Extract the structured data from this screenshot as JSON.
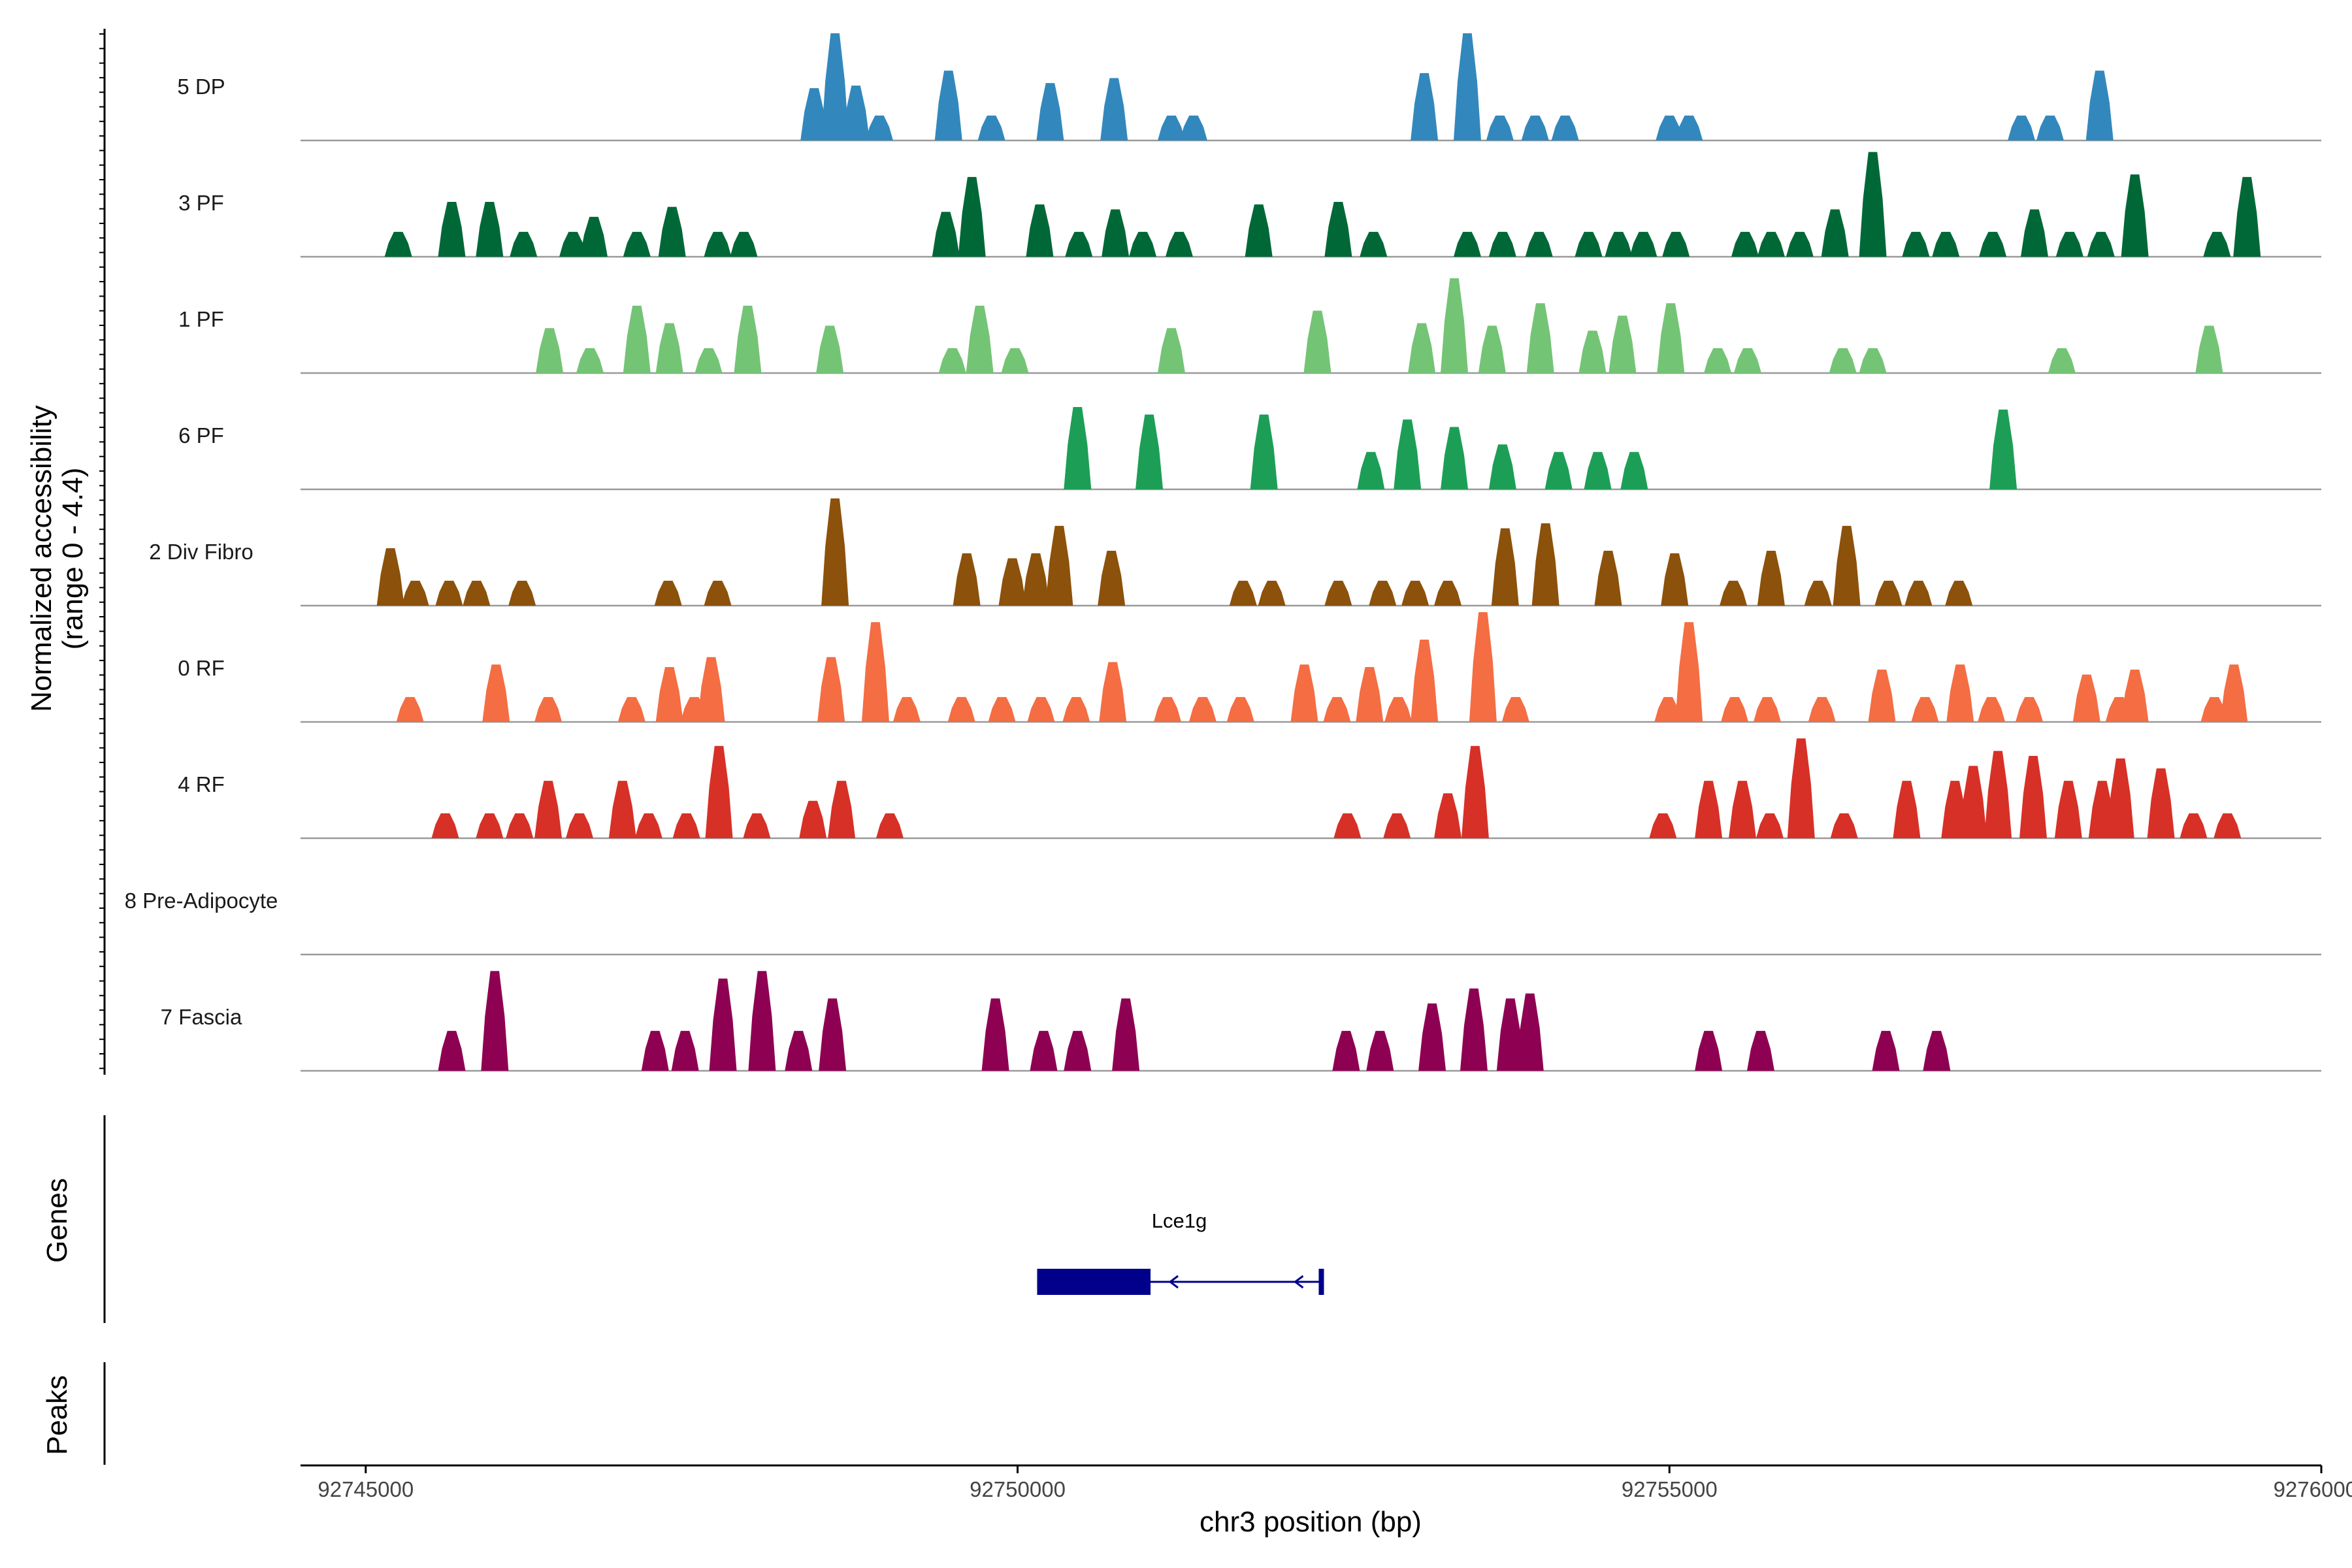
{
  "chart_data": {
    "type": "area",
    "title": "",
    "ylabel": "Normalized accessibility",
    "ylabel_range": "(range 0 - 4.4)",
    "y_range": [
      0,
      4.4
    ],
    "xlabel": "chr3 position (bp)",
    "xlim": [
      92744500,
      92760000
    ],
    "x_ticks": [
      {
        "value": 92745000,
        "label": "92745000"
      },
      {
        "value": 92750000,
        "label": "92750000"
      },
      {
        "value": 92755000,
        "label": "92755000"
      },
      {
        "value": 92760000,
        "label": "92760000"
      }
    ],
    "series": [
      {
        "name": "5 DP",
        "color": "#3288BD",
        "peaks": [
          [
            92748440,
            2.1
          ],
          [
            92748600,
            4.3
          ],
          [
            92748760,
            2.2
          ],
          [
            92748940,
            1.0
          ],
          [
            92749470,
            2.8
          ],
          [
            92749800,
            1.0
          ],
          [
            92750250,
            2.3
          ],
          [
            92750740,
            2.5
          ],
          [
            92751180,
            1.0
          ],
          [
            92751350,
            1.0
          ],
          [
            92753120,
            2.7
          ],
          [
            92753450,
            4.3
          ],
          [
            92753700,
            1.0
          ],
          [
            92753970,
            1.0
          ],
          [
            92754200,
            1.0
          ],
          [
            92755000,
            1.0
          ],
          [
            92755150,
            1.0
          ],
          [
            92757700,
            1.0
          ],
          [
            92757920,
            1.0
          ],
          [
            92758300,
            2.8
          ]
        ]
      },
      {
        "name": "3 PF",
        "color": "#006837",
        "peaks": [
          [
            92745250,
            1.0
          ],
          [
            92745660,
            2.2
          ],
          [
            92745950,
            2.2
          ],
          [
            92746210,
            1.0
          ],
          [
            92746590,
            1.0
          ],
          [
            92746750,
            1.6
          ],
          [
            92747080,
            1.0
          ],
          [
            92747350,
            2.0
          ],
          [
            92747700,
            1.0
          ],
          [
            92747900,
            1.0
          ],
          [
            92749450,
            1.8
          ],
          [
            92749650,
            3.2
          ],
          [
            92750170,
            2.1
          ],
          [
            92750470,
            1.0
          ],
          [
            92750750,
            1.9
          ],
          [
            92750960,
            1.0
          ],
          [
            92751240,
            1.0
          ],
          [
            92751850,
            2.1
          ],
          [
            92752460,
            2.2
          ],
          [
            92752730,
            1.0
          ],
          [
            92753450,
            1.0
          ],
          [
            92753720,
            1.0
          ],
          [
            92754000,
            1.0
          ],
          [
            92754380,
            1.0
          ],
          [
            92754610,
            1.0
          ],
          [
            92754800,
            1.0
          ],
          [
            92755050,
            1.0
          ],
          [
            92755580,
            1.0
          ],
          [
            92755780,
            1.0
          ],
          [
            92756000,
            1.0
          ],
          [
            92756270,
            1.9
          ],
          [
            92756560,
            4.2
          ],
          [
            92756890,
            1.0
          ],
          [
            92757120,
            1.0
          ],
          [
            92757480,
            1.0
          ],
          [
            92757800,
            1.9
          ],
          [
            92758070,
            1.0
          ],
          [
            92758310,
            1.0
          ],
          [
            92758570,
            3.3
          ],
          [
            92759200,
            1.0
          ],
          [
            92759430,
            3.2
          ]
        ]
      },
      {
        "name": "1 PF",
        "color": "#74C476",
        "peaks": [
          [
            92746410,
            1.8
          ],
          [
            92746720,
            1.0
          ],
          [
            92747080,
            2.7
          ],
          [
            92747330,
            2.0
          ],
          [
            92747630,
            1.0
          ],
          [
            92747930,
            2.7
          ],
          [
            92748560,
            1.9
          ],
          [
            92749500,
            1.0
          ],
          [
            92749710,
            2.7
          ],
          [
            92749980,
            1.0
          ],
          [
            92751180,
            1.8
          ],
          [
            92752300,
            2.5
          ],
          [
            92753100,
            2.0
          ],
          [
            92753350,
            3.8
          ],
          [
            92753640,
            1.9
          ],
          [
            92754010,
            2.8
          ],
          [
            92754410,
            1.7
          ],
          [
            92754640,
            2.3
          ],
          [
            92755010,
            2.8
          ],
          [
            92755370,
            1.0
          ],
          [
            92755600,
            1.0
          ],
          [
            92756330,
            1.0
          ],
          [
            92756560,
            1.0
          ],
          [
            92758010,
            1.0
          ],
          [
            92759140,
            1.9
          ]
        ]
      },
      {
        "name": "6 PF",
        "color": "#1D9E57",
        "peaks": [
          [
            92750460,
            3.3
          ],
          [
            92751010,
            3.0
          ],
          [
            92751890,
            3.0
          ],
          [
            92752710,
            1.5
          ],
          [
            92752990,
            2.8
          ],
          [
            92753350,
            2.5
          ],
          [
            92753720,
            1.8
          ],
          [
            92754150,
            1.5
          ],
          [
            92754450,
            1.5
          ],
          [
            92754730,
            1.5
          ],
          [
            92757560,
            3.2
          ]
        ]
      },
      {
        "name": "2 Div Fibro",
        "color": "#8C510A",
        "peaks": [
          [
            92745190,
            2.3
          ],
          [
            92745380,
            1.0
          ],
          [
            92745640,
            1.0
          ],
          [
            92745850,
            1.0
          ],
          [
            92746200,
            1.0
          ],
          [
            92747320,
            1.0
          ],
          [
            92747700,
            1.0
          ],
          [
            92748600,
            4.3
          ],
          [
            92749610,
            2.1
          ],
          [
            92749960,
            1.9
          ],
          [
            92750140,
            2.1
          ],
          [
            92750320,
            3.2
          ],
          [
            92750720,
            2.2
          ],
          [
            92751730,
            1.0
          ],
          [
            92751950,
            1.0
          ],
          [
            92752460,
            1.0
          ],
          [
            92752800,
            1.0
          ],
          [
            92753050,
            1.0
          ],
          [
            92753300,
            1.0
          ],
          [
            92753740,
            3.1
          ],
          [
            92754050,
            3.3
          ],
          [
            92754530,
            2.2
          ],
          [
            92755040,
            2.1
          ],
          [
            92755490,
            1.0
          ],
          [
            92755780,
            2.2
          ],
          [
            92756140,
            1.0
          ],
          [
            92756360,
            3.2
          ],
          [
            92756680,
            1.0
          ],
          [
            92756910,
            1.0
          ],
          [
            92757220,
            1.0
          ]
        ]
      },
      {
        "name": "0 RF",
        "color": "#F46D43",
        "peaks": [
          [
            92745340,
            1.0
          ],
          [
            92746000,
            2.3
          ],
          [
            92746400,
            1.0
          ],
          [
            92747040,
            1.0
          ],
          [
            92747330,
            2.2
          ],
          [
            92747520,
            1.0
          ],
          [
            92747650,
            2.6
          ],
          [
            92748570,
            2.6
          ],
          [
            92748910,
            4.0
          ],
          [
            92749150,
            1.0
          ],
          [
            92749570,
            1.0
          ],
          [
            92749880,
            1.0
          ],
          [
            92750180,
            1.0
          ],
          [
            92750450,
            1.0
          ],
          [
            92750730,
            2.4
          ],
          [
            92751150,
            1.0
          ],
          [
            92751420,
            1.0
          ],
          [
            92751710,
            1.0
          ],
          [
            92752200,
            2.3
          ],
          [
            92752450,
            1.0
          ],
          [
            92752700,
            2.2
          ],
          [
            92752920,
            1.0
          ],
          [
            92753120,
            3.3
          ],
          [
            92753570,
            4.4
          ],
          [
            92753820,
            1.0
          ],
          [
            92754990,
            1.0
          ],
          [
            92755150,
            4.0
          ],
          [
            92755500,
            1.0
          ],
          [
            92755750,
            1.0
          ],
          [
            92756170,
            1.0
          ],
          [
            92756630,
            2.1
          ],
          [
            92756960,
            1.0
          ],
          [
            92757230,
            2.3
          ],
          [
            92757470,
            1.0
          ],
          [
            92757760,
            1.0
          ],
          [
            92758200,
            1.9
          ],
          [
            92758450,
            1.0
          ],
          [
            92758570,
            2.1
          ],
          [
            92759180,
            1.0
          ],
          [
            92759330,
            2.3
          ]
        ]
      },
      {
        "name": "4 RF",
        "color": "#D73027",
        "peaks": [
          [
            92745610,
            1.0
          ],
          [
            92745950,
            1.0
          ],
          [
            92746180,
            1.0
          ],
          [
            92746400,
            2.3
          ],
          [
            92746640,
            1.0
          ],
          [
            92746970,
            2.3
          ],
          [
            92747170,
            1.0
          ],
          [
            92747460,
            1.0
          ],
          [
            92747710,
            3.7
          ],
          [
            92748000,
            1.0
          ],
          [
            92748430,
            1.5
          ],
          [
            92748650,
            2.3
          ],
          [
            92749020,
            1.0
          ],
          [
            92752530,
            1.0
          ],
          [
            92752910,
            1.0
          ],
          [
            92753300,
            1.8
          ],
          [
            92753510,
            3.7
          ],
          [
            92754950,
            1.0
          ],
          [
            92755300,
            2.3
          ],
          [
            92755560,
            2.3
          ],
          [
            92755770,
            1.0
          ],
          [
            92756010,
            4.0
          ],
          [
            92756340,
            1.0
          ],
          [
            92756820,
            2.3
          ],
          [
            92757190,
            2.3
          ],
          [
            92757330,
            2.9
          ],
          [
            92757520,
            3.5
          ],
          [
            92757790,
            3.3
          ],
          [
            92758060,
            2.3
          ],
          [
            92758320,
            2.3
          ],
          [
            92758460,
            3.2
          ],
          [
            92758770,
            2.8
          ],
          [
            92759020,
            1.0
          ],
          [
            92759280,
            1.0
          ]
        ]
      },
      {
        "name": "8 Pre-Adipocyte",
        "color": "#FEE08B",
        "peaks": []
      },
      {
        "name": "7 Fascia",
        "color": "#8E0152",
        "peaks": [
          [
            92745660,
            1.6
          ],
          [
            92745990,
            4.0
          ],
          [
            92747220,
            1.6
          ],
          [
            92747450,
            1.6
          ],
          [
            92747740,
            3.7
          ],
          [
            92748040,
            4.0
          ],
          [
            92748320,
            1.6
          ],
          [
            92748580,
            2.9
          ],
          [
            92749830,
            2.9
          ],
          [
            92750200,
            1.6
          ],
          [
            92750460,
            1.6
          ],
          [
            92750830,
            2.9
          ],
          [
            92752520,
            1.6
          ],
          [
            92752780,
            1.6
          ],
          [
            92753180,
            2.7
          ],
          [
            92753500,
            3.3
          ],
          [
            92753780,
            2.9
          ],
          [
            92753930,
            3.1
          ],
          [
            92755300,
            1.6
          ],
          [
            92755700,
            1.6
          ],
          [
            92756660,
            1.6
          ],
          [
            92757050,
            1.6
          ]
        ]
      }
    ],
    "genes_track": {
      "label": "Genes",
      "genes": [
        {
          "name": "Lce1g",
          "start": 92750150,
          "end": 92752330,
          "exon_start": 92750150,
          "exon_end": 92751020,
          "strand": "-",
          "color": "#00008B"
        }
      ]
    },
    "peaks_track": {
      "label": "Peaks",
      "regions": []
    }
  }
}
